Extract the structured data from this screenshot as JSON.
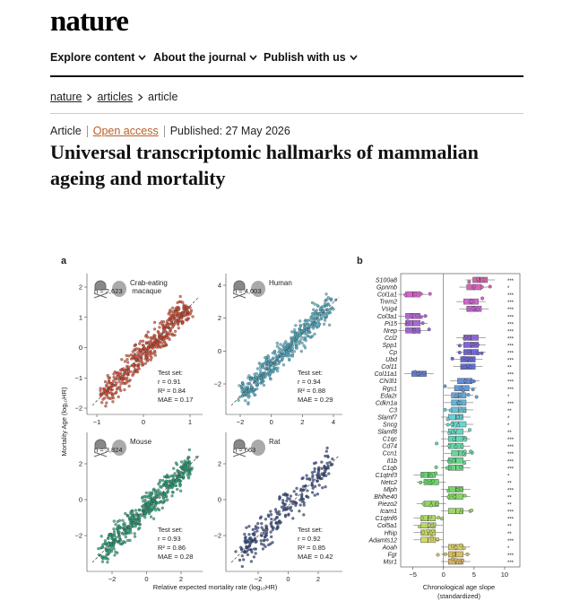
{
  "header": {
    "logo": "nature",
    "nav": [
      "Explore content",
      "About the journal",
      "Publish with us"
    ]
  },
  "breadcrumb": [
    "nature",
    "articles",
    "article"
  ],
  "article": {
    "type": "Article",
    "access": "Open access",
    "published": "Published: 27 May 2026",
    "title": "Universal transcriptomic hallmarks of mammalian ageing and mortality"
  },
  "figure": {
    "panel_a": {
      "label": "a",
      "y_label": "Mortality Age (log₁₀HR)",
      "x_label": "Relative expected mortality rate (log₁₀HR)",
      "plots": [
        {
          "species": "Crab-eating macaque",
          "n": "n = 2,623",
          "test": [
            "Test set:",
            "r = 0.91",
            "R² = 0.84",
            "MAE = 0.17"
          ],
          "yticks": [
            "2",
            "1",
            "0",
            "−1",
            "−2"
          ],
          "xticks": [
            "−1",
            "0",
            "1"
          ]
        },
        {
          "species": "Human",
          "n": "n = 4,003",
          "test": [
            "Test set:",
            "r = 0.94",
            "R² = 0.88",
            "MAE = 0.29"
          ],
          "yticks": [
            "4",
            "2",
            "0",
            "−2"
          ],
          "xticks": [
            "−2",
            "0",
            "2",
            "4"
          ]
        },
        {
          "species": "Mouse",
          "n": "n = 3,824",
          "test": [
            "Test set:",
            "r = 0.93",
            "R² = 0.86",
            "MAE = 0.28"
          ],
          "yticks": [
            "2",
            "0",
            "−2"
          ],
          "xticks": [
            "−2",
            "0",
            "2"
          ]
        },
        {
          "species": "Rat",
          "n": "n = 663",
          "test": [
            "Test set:",
            "r = 0.92",
            "R² = 0.85",
            "MAE = 0.42"
          ],
          "yticks": [
            "2",
            "0",
            "−2"
          ],
          "xticks": [
            "−2",
            "0",
            "2"
          ]
        }
      ]
    },
    "panel_b": {
      "label": "b",
      "x_label": [
        "Chronological age slope",
        "(standardized)"
      ],
      "xlim": [
        -7,
        12.5
      ],
      "xticks": [
        {
          "value": -5,
          "label": "−5"
        },
        0,
        5,
        10
      ],
      "genes": [
        {
          "name": "S100a8",
          "slope": 6,
          "stars": "***"
        },
        {
          "name": "Gpnmb",
          "slope": 5,
          "stars": "*"
        },
        {
          "name": "Col1a1",
          "slope": -5,
          "stars": "***"
        },
        {
          "name": "Trem2",
          "slope": 4.5,
          "stars": "***"
        },
        {
          "name": "Vsig4",
          "slope": 5,
          "stars": "***"
        },
        {
          "name": "Col3a1",
          "slope": -5,
          "stars": "***"
        },
        {
          "name": "Pi15",
          "slope": -5,
          "stars": "***"
        },
        {
          "name": "Nrep",
          "slope": -5,
          "stars": "***"
        },
        {
          "name": "Ccl2",
          "slope": 4.5,
          "stars": "***"
        },
        {
          "name": "Spp1",
          "slope": 4.5,
          "stars": "***"
        },
        {
          "name": "Cp",
          "slope": 4.5,
          "stars": "***"
        },
        {
          "name": "Ubd",
          "slope": 4,
          "stars": "***"
        },
        {
          "name": "Col11",
          "slope": 4,
          "stars": "**"
        },
        {
          "name": "Col11a1",
          "slope": -4,
          "stars": "***"
        },
        {
          "name": "Chi3l1",
          "slope": 3.5,
          "stars": "***"
        },
        {
          "name": "Rgs1",
          "slope": 3,
          "stars": "***"
        },
        {
          "name": "Eda2r",
          "slope": 2.5,
          "stars": "*"
        },
        {
          "name": "Cdkn1a",
          "slope": 2.5,
          "stars": "***"
        },
        {
          "name": "C3",
          "slope": 2.5,
          "stars": "**"
        },
        {
          "name": "Slamf7",
          "slope": 2,
          "stars": "*"
        },
        {
          "name": "Sncg",
          "slope": 2.5,
          "stars": "*"
        },
        {
          "name": "Slamf8",
          "slope": 2,
          "stars": "**"
        },
        {
          "name": "C1qc",
          "slope": 2,
          "stars": "***"
        },
        {
          "name": "Cd74",
          "slope": 2,
          "stars": "***"
        },
        {
          "name": "Ccn1",
          "slope": 2.5,
          "stars": "***"
        },
        {
          "name": "Il1b",
          "slope": 2,
          "stars": "***"
        },
        {
          "name": "C1qb",
          "slope": 2,
          "stars": "***"
        },
        {
          "name": "C1qtnf3",
          "slope": -2.5,
          "stars": "*"
        },
        {
          "name": "Netc2",
          "slope": -2,
          "stars": "**"
        },
        {
          "name": "Mlph",
          "slope": 2,
          "stars": "***"
        },
        {
          "name": "Bhlhe40",
          "slope": 2,
          "stars": "**"
        },
        {
          "name": "Piezo2",
          "slope": -2,
          "stars": "**"
        },
        {
          "name": "Icam1",
          "slope": 2,
          "stars": "***"
        },
        {
          "name": "C1qtnf6",
          "slope": -2.5,
          "stars": "***"
        },
        {
          "name": "Col5a1",
          "slope": -2.5,
          "stars": "**"
        },
        {
          "name": "Hhip",
          "slope": -2.5,
          "stars": "**"
        },
        {
          "name": "Adamts12",
          "slope": -2.5,
          "stars": "***"
        },
        {
          "name": "Aoah",
          "slope": 2,
          "stars": "*"
        },
        {
          "name": "Fgr",
          "slope": 2,
          "stars": "***"
        },
        {
          "name": "Msr1",
          "slope": 2,
          "stars": "***"
        }
      ]
    }
  }
}
